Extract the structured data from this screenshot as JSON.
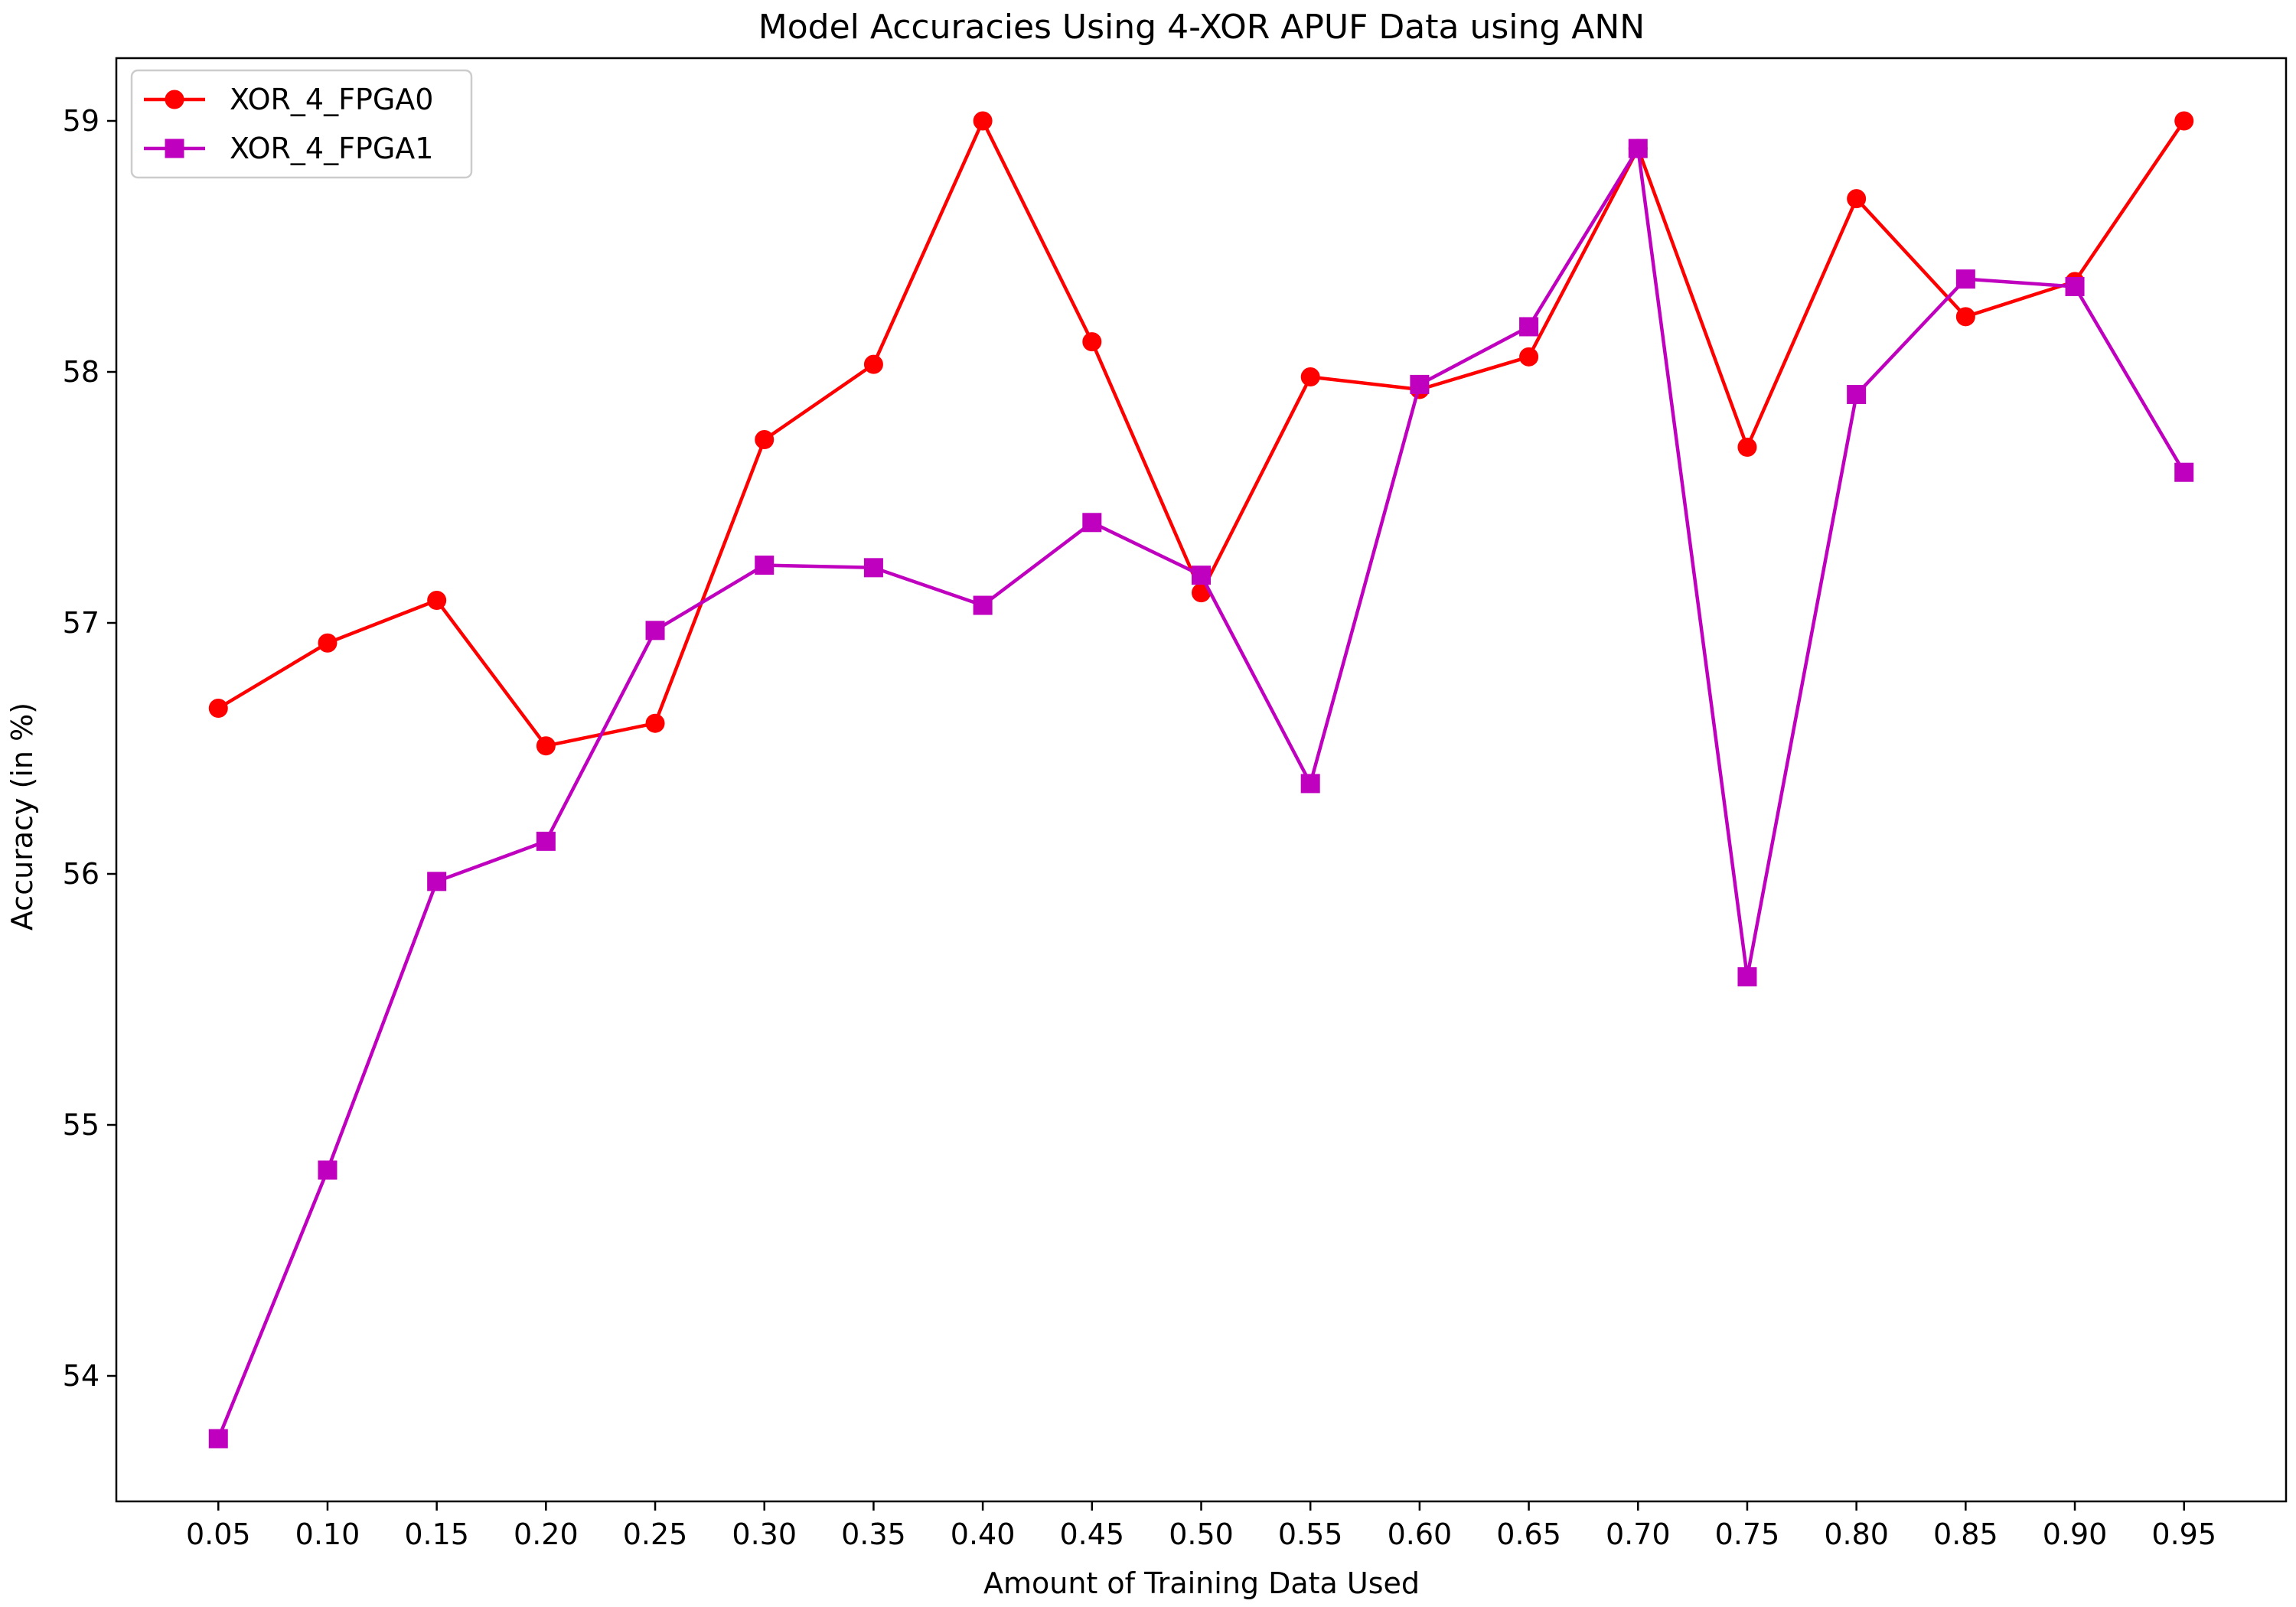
{
  "chart_data": {
    "type": "line",
    "title": "Model Accuracies Using 4-XOR APUF Data using ANN",
    "xlabel": "Amount of Training Data Used",
    "ylabel": "Accuracy (in %)",
    "x": [
      0.05,
      0.1,
      0.15,
      0.2,
      0.25,
      0.3,
      0.35,
      0.4,
      0.45,
      0.5,
      0.55,
      0.6,
      0.65,
      0.7,
      0.75,
      0.8,
      0.85,
      0.9,
      0.95
    ],
    "x_tick_labels": [
      "0.05",
      "0.10",
      "0.15",
      "0.20",
      "0.25",
      "0.30",
      "0.35",
      "0.40",
      "0.45",
      "0.50",
      "0.55",
      "0.60",
      "0.65",
      "0.70",
      "0.75",
      "0.80",
      "0.85",
      "0.90",
      "0.95"
    ],
    "y_ticks": [
      54,
      55,
      56,
      57,
      58,
      59
    ],
    "y_tick_labels": [
      "54",
      "55",
      "56",
      "57",
      "58",
      "59"
    ],
    "xlim": [
      0.0033,
      0.9967
    ],
    "ylim": [
      53.5,
      59.25
    ],
    "grid": false,
    "legend_position": "upper-left",
    "series": [
      {
        "name": "XOR_4_FPGA0",
        "color": "#ff0000",
        "marker": "circle",
        "values": [
          56.66,
          56.92,
          57.09,
          56.51,
          56.6,
          57.73,
          58.03,
          59.0,
          58.12,
          57.12,
          57.98,
          57.93,
          58.06,
          58.89,
          57.7,
          58.69,
          58.22,
          58.36,
          59.0
        ]
      },
      {
        "name": "XOR_4_FPGA1",
        "color": "#bf00bf",
        "marker": "square",
        "values": [
          53.75,
          54.82,
          55.97,
          56.13,
          56.97,
          57.23,
          57.22,
          57.07,
          57.4,
          57.19,
          56.36,
          57.95,
          58.18,
          58.89,
          55.59,
          57.91,
          58.37,
          58.34,
          57.6
        ]
      }
    ]
  }
}
